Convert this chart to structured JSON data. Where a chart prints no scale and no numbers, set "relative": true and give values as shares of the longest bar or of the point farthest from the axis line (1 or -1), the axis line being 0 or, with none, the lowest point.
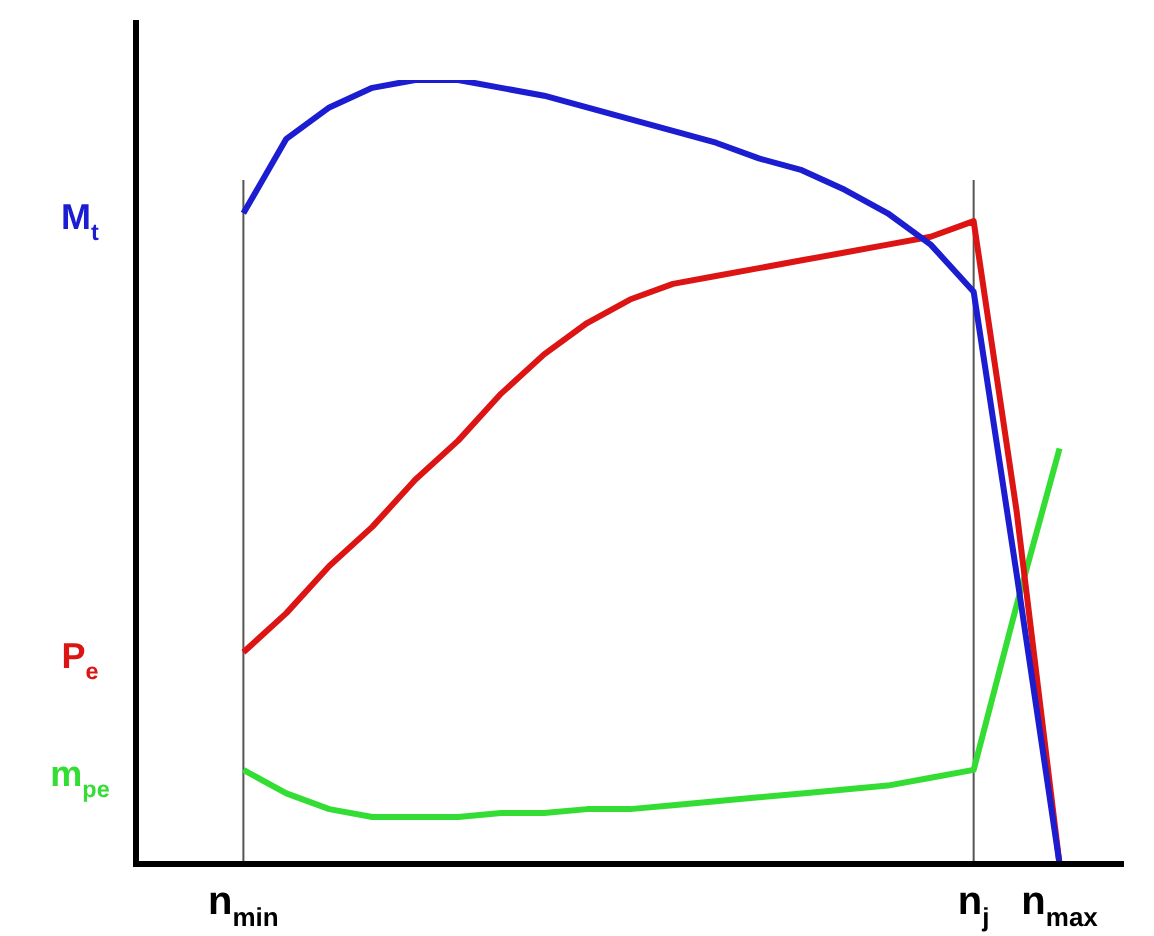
{
  "chart_data": {
    "type": "line",
    "relative": true,
    "categories": [
      "n$_{min}$",
      null,
      null,
      null,
      null,
      null,
      null,
      null,
      null,
      null,
      null,
      null,
      null,
      null,
      null,
      null,
      null,
      "n$_{j}$",
      null,
      "n$_{max}$"
    ],
    "series": [
      {
        "name": "M$_{t}$",
        "color": "#1c1cd0",
        "values": [
          0.83,
          0.925,
          0.965,
          0.99,
          1.0,
          1.0,
          0.99,
          0.98,
          0.965,
          0.95,
          0.935,
          0.92,
          0.9,
          0.885,
          0.86,
          0.83,
          0.79,
          0.73,
          0.37,
          0
        ]
      },
      {
        "name": "P$_{e}$",
        "color": "#dd1414",
        "values": [
          0.27,
          0.32,
          0.38,
          0.43,
          0.49,
          0.54,
          0.6,
          0.65,
          0.69,
          0.72,
          0.74,
          0.75,
          0.76,
          0.77,
          0.78,
          0.79,
          0.8,
          0.82,
          0.45,
          0
        ]
      },
      {
        "name": "m$_{pe}$",
        "color": "#33dd33",
        "values": [
          0.12,
          0.09,
          0.07,
          0.06,
          0.06,
          0.06,
          0.065,
          0.065,
          0.07,
          0.07,
          0.075,
          0.08,
          0.085,
          0.09,
          0.095,
          0.1,
          0.11,
          0.12,
          0.33,
          0.53
        ]
      }
    ],
    "ref_lines": [
      {
        "axis": "x",
        "value": "n$_{min}$",
        "color": "#555555"
      },
      {
        "axis": "x",
        "value": "n$_{j}$",
        "color": "#555555"
      }
    ],
    "legend": false,
    "marker": "none",
    "line_style": "solid"
  }
}
